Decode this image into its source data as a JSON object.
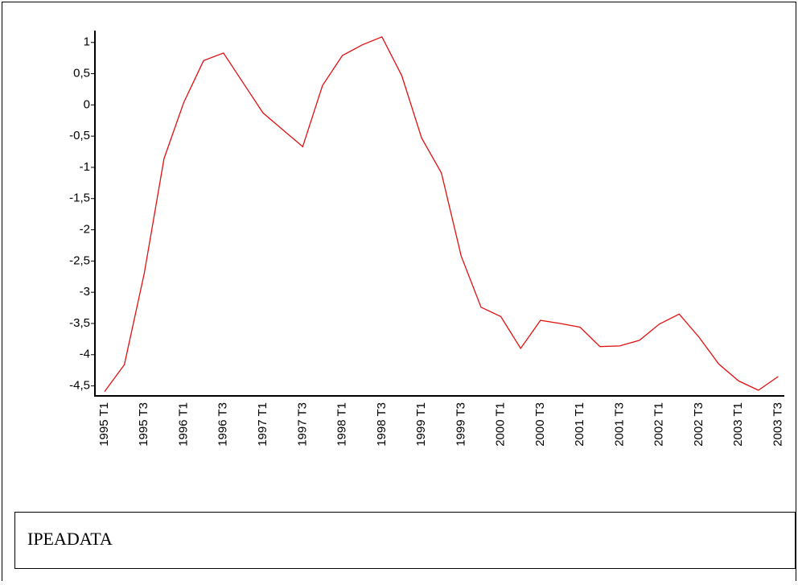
{
  "chart_data": {
    "type": "line",
    "categories": [
      "1995 T1",
      null,
      "1995 T3",
      null,
      "1996 T1",
      null,
      "1996 T3",
      null,
      "1997 T1",
      null,
      "1997 T3",
      null,
      "1998 T1",
      null,
      "1998 T3",
      null,
      "1999 T1",
      null,
      "1999 T3",
      null,
      "2000 T1",
      null,
      "2000 T3",
      null,
      "2001 T1",
      null,
      "2001 T3",
      null,
      "2002 T1",
      null,
      "2002 T3",
      null,
      "2003 T1",
      null,
      "2003 T3"
    ],
    "values": [
      -4.59,
      -4.16,
      -2.7,
      -0.86,
      0.04,
      0.71,
      0.83,
      0.35,
      -0.13,
      -0.4,
      -0.67,
      0.31,
      0.79,
      0.96,
      1.09,
      0.47,
      -0.53,
      -1.09,
      -2.42,
      -3.24,
      -3.39,
      -3.9,
      -3.45,
      -3.5,
      -3.56,
      -3.87,
      -3.86,
      -3.77,
      -3.51,
      -3.35,
      -3.72,
      -4.15,
      -4.42,
      -4.57,
      -4.35
    ],
    "color": "#e01010",
    "ylim": [
      -4.66,
      1.19
    ],
    "yticks": [
      1,
      {
        "value": 0.5,
        "label": "0,5"
      },
      0,
      {
        "value": -0.5,
        "label": "-0,5"
      },
      -1,
      {
        "value": -1.5,
        "label": "-1,5"
      },
      -2,
      {
        "value": -2.5,
        "label": "-2,5"
      },
      -3,
      {
        "value": -3.5,
        "label": "-3,5"
      },
      -4,
      {
        "value": -4.5,
        "label": "-4,5"
      }
    ],
    "source": "IPEADATA"
  }
}
